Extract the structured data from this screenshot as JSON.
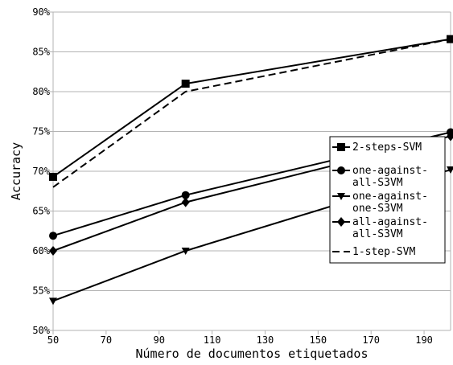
{
  "chart_data": {
    "type": "line",
    "xlabel": "Número de documentos etiquetados",
    "ylabel": "Accuracy",
    "xlim": [
      50,
      200
    ],
    "ylim": [
      50,
      90
    ],
    "x_ticks": [
      50,
      70,
      90,
      110,
      130,
      150,
      170,
      190
    ],
    "y_ticks": [
      50,
      55,
      60,
      65,
      70,
      75,
      80,
      85,
      90
    ],
    "y_tick_labels": [
      "50%",
      "55%",
      "60%",
      "65%",
      "70%",
      "75%",
      "80%",
      "85%",
      "90%"
    ],
    "grid": "horizontal",
    "legend_position": "right",
    "x": [
      50,
      100,
      200
    ],
    "series": [
      {
        "name": "2-steps-SVM",
        "values": [
          69.3,
          81.0,
          86.6
        ],
        "marker": "square",
        "dash": false
      },
      {
        "name": "one-against-all-S3VM",
        "legend_lines": [
          "one-against-",
          "all-S3VM"
        ],
        "values": [
          61.9,
          67.0,
          74.9
        ],
        "marker": "circle",
        "dash": false
      },
      {
        "name": "one-against-one-S3VM",
        "legend_lines": [
          "one-against-",
          "one-S3VM"
        ],
        "values": [
          53.7,
          60.0,
          70.2
        ],
        "marker": "triangle-down",
        "dash": false
      },
      {
        "name": "all-against-all-S3VM",
        "legend_lines": [
          "all-against-",
          "all-S3VM"
        ],
        "values": [
          60.0,
          66.1,
          74.4
        ],
        "marker": "diamond",
        "dash": false
      },
      {
        "name": "1-step-SVM",
        "values": [
          68.0,
          80.0,
          86.6
        ],
        "marker": "none",
        "dash": true
      }
    ],
    "colors": {
      "line": "#000000",
      "grid": "#b3b3b3"
    }
  }
}
